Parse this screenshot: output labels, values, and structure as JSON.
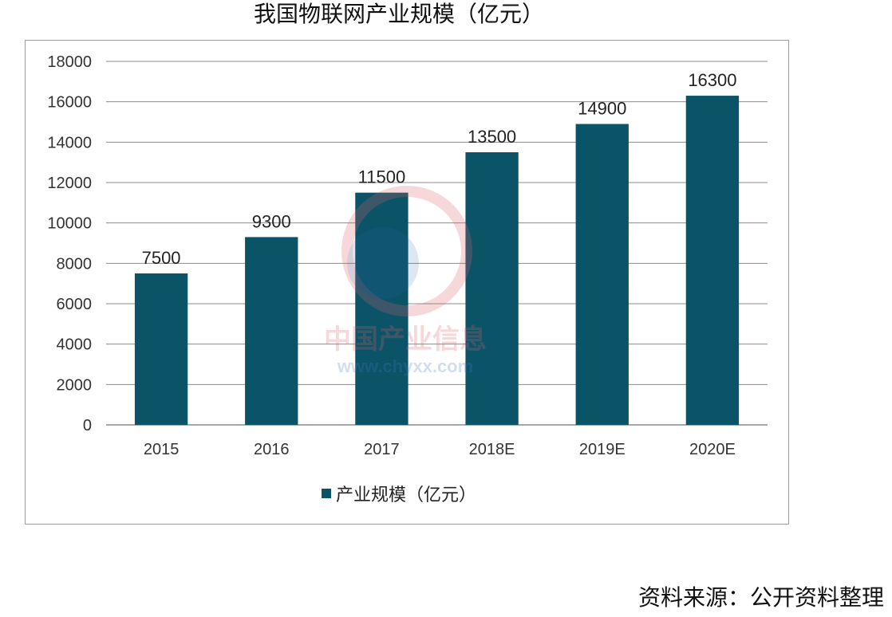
{
  "title": "我国物联网产业规模（亿元）",
  "source": "资料来源：公开资料整理",
  "watermark": {
    "text_cn": "中国产业信息",
    "text_url": "www.chyxx.com"
  },
  "colors": {
    "bar": "#0b5468",
    "grid": "#8c8c8c"
  },
  "chart_data": {
    "type": "bar",
    "categories": [
      "2015",
      "2016",
      "2017",
      "2018E",
      "2019E",
      "2020E"
    ],
    "series": [
      {
        "name": "产业规模（亿元）",
        "values": [
          7500,
          9300,
          11500,
          13500,
          14900,
          16300
        ]
      }
    ],
    "ylim": [
      0,
      18000
    ],
    "yticks": [
      0,
      2000,
      4000,
      6000,
      8000,
      10000,
      12000,
      14000,
      16000,
      18000
    ],
    "grid": true,
    "legend_position": "bottom"
  }
}
